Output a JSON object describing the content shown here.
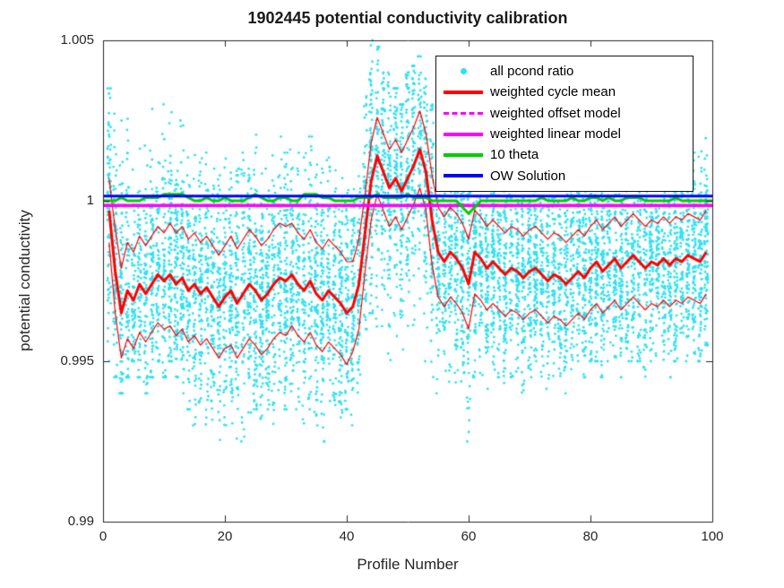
{
  "chart_data": {
    "type": "scatter",
    "title": "1902445 potential conductivity calibration",
    "xlabel": "Profile Number",
    "ylabel": "potential conductivity",
    "xlim": [
      0,
      100
    ],
    "ylim": [
      0.99,
      1.005
    ],
    "grid": false,
    "legend_position": "top-right-inside",
    "x_ticks": [
      0,
      20,
      40,
      60,
      80,
      100
    ],
    "x_tick_labels": [
      "0",
      "20",
      "40",
      "60",
      "80",
      "100"
    ],
    "y_ticks": [
      0.99,
      0.995,
      1,
      1.005
    ],
    "y_tick_labels": [
      "0.99",
      "0.995",
      "1",
      "1.005"
    ],
    "legend": [
      {
        "label": "all pcond ratio",
        "series": "scatter",
        "swatch": "dot"
      },
      {
        "label": "weighted cycle mean",
        "series": "cycle_mean",
        "swatch": "line"
      },
      {
        "label": "weighted offset model",
        "series": "offset_model",
        "swatch": "dash"
      },
      {
        "label": "weighted linear model",
        "series": "linear_model",
        "swatch": "line"
      },
      {
        "label": "10 theta",
        "series": "theta",
        "swatch": "line"
      },
      {
        "label": "OW Solution",
        "series": "ow_solution",
        "swatch": "line"
      }
    ],
    "series": {
      "scatter": {
        "label": "all pcond ratio",
        "color": "#2ee1f0",
        "seed": 1902445,
        "profiles_start": 1,
        "lo": [
          0.995,
          0.9945,
          0.994,
          0.9945,
          0.995,
          0.9945,
          0.994,
          0.9945,
          0.995,
          0.9945,
          0.995,
          0.9945,
          0.994,
          0.9935,
          0.993,
          0.9935,
          0.993,
          0.993,
          0.9925,
          0.993,
          0.993,
          0.992,
          0.9925,
          0.993,
          0.9935,
          0.993,
          0.9935,
          0.993,
          0.994,
          0.9935,
          0.994,
          0.9935,
          0.993,
          0.9935,
          0.993,
          0.9925,
          0.9935,
          0.993,
          0.993,
          0.9935,
          0.993,
          0.994,
          0.996,
          0.9965,
          0.996,
          0.9955,
          0.995,
          0.995,
          0.9945,
          0.9955,
          0.995,
          0.9955,
          0.995,
          0.9945,
          0.994,
          0.9935,
          0.994,
          0.994,
          0.9935,
          0.9925,
          0.9945,
          0.9945,
          0.994,
          0.9945,
          0.9945,
          0.994,
          0.9945,
          0.9945,
          0.994,
          0.9945,
          0.995,
          0.9945,
          0.994,
          0.9945,
          0.9945,
          0.994,
          0.9945,
          0.995,
          0.9945,
          0.995,
          0.995,
          0.9945,
          0.995,
          0.995,
          0.9945,
          0.995,
          0.995,
          0.995,
          0.9945,
          0.995,
          0.995,
          0.995,
          0.9945,
          0.995,
          0.9955,
          0.995,
          0.995,
          0.995,
          0.9955
        ],
        "hi": [
          1.0035,
          1.003,
          1.0025,
          1.0035,
          1.002,
          1.002,
          1.0025,
          1.003,
          1.003,
          1.0035,
          1.003,
          1.002,
          1.0025,
          1.0015,
          1.0015,
          1.002,
          1.0015,
          1.001,
          1.001,
          1.0015,
          1.001,
          1.001,
          1.0015,
          1.001,
          1.003,
          1.0015,
          1.001,
          1.0015,
          1.002,
          1.0015,
          1.002,
          1.0015,
          1.0015,
          1.002,
          1.0015,
          1.001,
          1.0015,
          1.001,
          1.001,
          1.001,
          1.0005,
          1.0015,
          1.004,
          1.005,
          1.0048,
          1.004,
          1.004,
          1.0035,
          1.003,
          1.004,
          1.0042,
          1.0045,
          1.0038,
          1.003,
          1.003,
          1.0025,
          1.002,
          1.002,
          1.0015,
          1.0015,
          1.002,
          1.0015,
          1.0015,
          1.002,
          1.0015,
          1.001,
          1.0015,
          1.0015,
          1.001,
          1.0015,
          1.0015,
          1.001,
          1.001,
          1.0015,
          1.001,
          1.0015,
          1.0015,
          1.002,
          1.0015,
          1.0025,
          1.002,
          1.0015,
          1.002,
          1.002,
          1.0015,
          1.002,
          1.0025,
          1.0025,
          1.0015,
          1.002,
          1.0015,
          1.002,
          1.0015,
          1.002,
          1.0015,
          1.002,
          1.0015,
          1.002,
          1.002
        ]
      },
      "cycle_mean": {
        "label": "weighted cycle mean",
        "color": "#ff0000",
        "values": [
          0.9997,
          0.9978,
          0.9965,
          0.9972,
          0.9969,
          0.9974,
          0.9971,
          0.9974,
          0.9977,
          0.9975,
          0.9977,
          0.9974,
          0.9976,
          0.9972,
          0.9974,
          0.9971,
          0.9973,
          0.997,
          0.9967,
          0.997,
          0.9972,
          0.9968,
          0.9971,
          0.9974,
          0.9972,
          0.9969,
          0.9971,
          0.9974,
          0.9976,
          0.9975,
          0.9977,
          0.9974,
          0.9972,
          0.9975,
          0.9971,
          0.9969,
          0.9972,
          0.997,
          0.9968,
          0.9965,
          0.9967,
          0.9974,
          0.999,
          1.0006,
          1.0014,
          1.0009,
          1.0004,
          1.0007,
          1.0003,
          1.0007,
          1.0011,
          1.0016,
          1.0009,
          0.9994,
          0.9984,
          0.9981,
          0.9984,
          0.9982,
          0.9979,
          0.9974,
          0.9984,
          0.9982,
          0.9979,
          0.9981,
          0.9979,
          0.9977,
          0.9979,
          0.9978,
          0.9976,
          0.9978,
          0.9979,
          0.9977,
          0.9975,
          0.9977,
          0.9976,
          0.9974,
          0.9976,
          0.9978,
          0.9976,
          0.9979,
          0.9981,
          0.9978,
          0.998,
          0.9982,
          0.9979,
          0.9981,
          0.9983,
          0.9981,
          0.9979,
          0.9981,
          0.998,
          0.9982,
          0.998,
          0.9982,
          0.9981,
          0.9983,
          0.9982,
          0.9981,
          0.9984
        ],
        "std": [
          0.001,
          0.0013,
          0.0014,
          0.0015,
          0.0015,
          0.0015,
          0.0015,
          0.0015,
          0.0015,
          0.0015,
          0.0016,
          0.0016,
          0.0016,
          0.0016,
          0.0016,
          0.0016,
          0.0016,
          0.0016,
          0.0016,
          0.0016,
          0.0017,
          0.0017,
          0.0017,
          0.0017,
          0.0017,
          0.0017,
          0.0017,
          0.0017,
          0.0017,
          0.0017,
          0.0016,
          0.0016,
          0.0016,
          0.0016,
          0.0016,
          0.0016,
          0.0016,
          0.0016,
          0.0016,
          0.0016,
          0.0014,
          0.0014,
          0.0012,
          0.0012,
          0.0012,
          0.0012,
          0.0012,
          0.0012,
          0.0012,
          0.0012,
          0.0012,
          0.0012,
          0.0012,
          0.0014,
          0.0014,
          0.0014,
          0.0014,
          0.0014,
          0.0014,
          0.0014,
          0.0013,
          0.0013,
          0.0013,
          0.0013,
          0.0013,
          0.0013,
          0.0013,
          0.0013,
          0.0013,
          0.0013,
          0.0013,
          0.0013,
          0.0013,
          0.0013,
          0.0013,
          0.0013,
          0.0013,
          0.0013,
          0.0013,
          0.0013,
          0.0013,
          0.0013,
          0.0013,
          0.0013,
          0.0013,
          0.0013,
          0.0013,
          0.0013,
          0.0013,
          0.0013,
          0.0013,
          0.0013,
          0.0013,
          0.0013,
          0.0013,
          0.0013,
          0.0013,
          0.0013,
          0.0013
        ]
      },
      "offset_model": {
        "label": "weighted offset model",
        "color": "#ff00ff",
        "style": "dashed",
        "value": 0.99985
      },
      "linear_model": {
        "label": "weighted linear model",
        "color": "#ff00ff",
        "start": 0.99985,
        "end": 0.99985
      },
      "theta": {
        "label": "10 theta",
        "color": "#00cc00",
        "values": [
          1.0,
          1.0,
          1.0001,
          1.0,
          1.0,
          1.0,
          1.0001,
          1.0001,
          1.0001,
          1.0002,
          1.0002,
          1.0002,
          1.0002,
          1.0001,
          1.0,
          1.0,
          1.0001,
          1.0,
          1.0,
          1.0001,
          1.0,
          1.0,
          1.0,
          1.0001,
          1.0002,
          1.0001,
          1.0,
          1.0,
          1.0001,
          1.0001,
          1.0,
          1.0,
          1.0002,
          1.0002,
          1.0002,
          1.0001,
          1.0001,
          1.0,
          1.0,
          1.0,
          1.0,
          1.0001,
          1.0001,
          1.0001,
          1.0002,
          1.0001,
          1.0001,
          1.0001,
          1.0001,
          1.0002,
          1.0001,
          1.0001,
          1.0001,
          1.0,
          1.0,
          1.0,
          1.0,
          1.0,
          0.9998,
          0.9996,
          0.9998,
          1.0,
          1.0,
          1.0,
          1.0,
          1.0,
          1.0,
          1.0,
          1.0,
          1.0,
          1.0,
          1.0001,
          1.0,
          1.0,
          1.0,
          1.0,
          1.0001,
          1.0,
          1.0,
          1.0001,
          1.0001,
          1.0,
          1.0001,
          1.0,
          1.0,
          1.0001,
          1.0001,
          1.0001,
          1.0,
          1.0,
          1.0,
          1.0,
          1.0,
          1.0001,
          1.0,
          1.0,
          1.0,
          1.0,
          1.0
        ]
      },
      "ow_solution": {
        "label": "OW Solution",
        "color": "#0000ff",
        "value": 1.00015
      }
    }
  }
}
